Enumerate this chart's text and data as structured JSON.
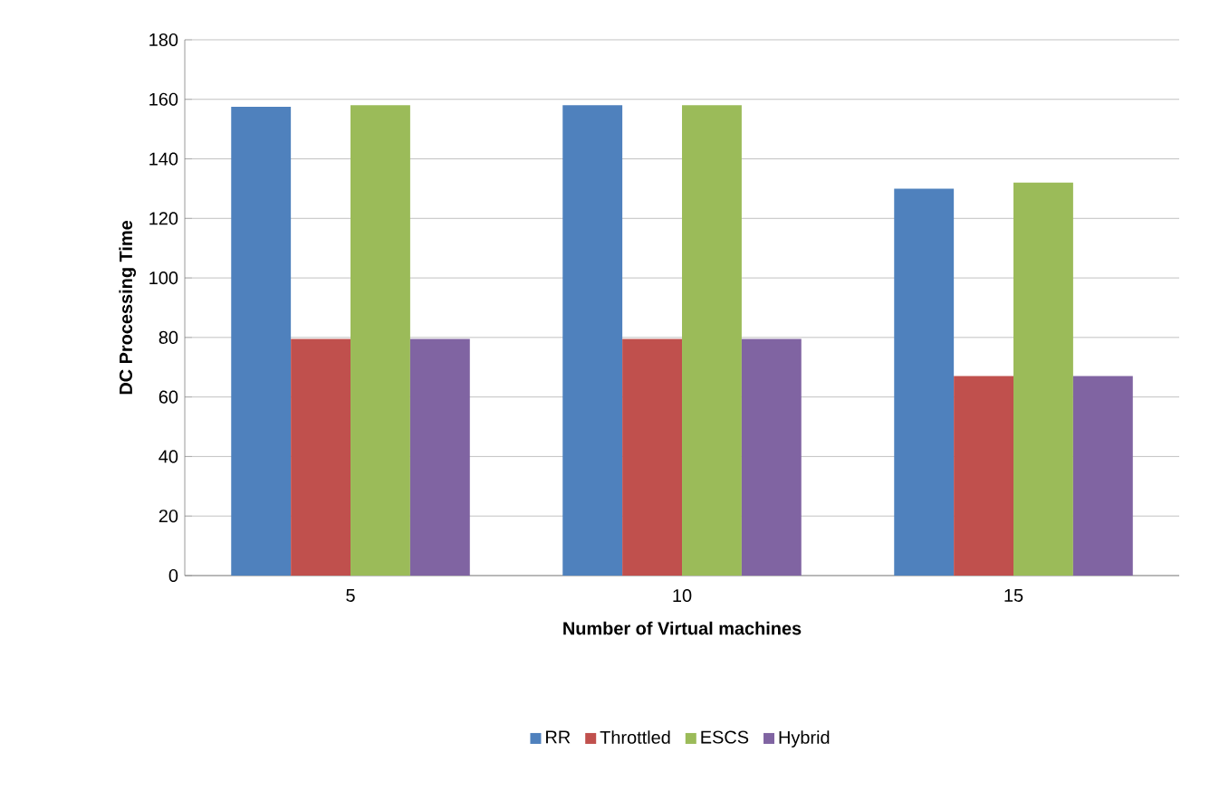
{
  "chart_data": {
    "type": "bar",
    "xlabel": "Number of Virtual machines",
    "ylabel": "DC Processing Time",
    "categories": [
      "5",
      "10",
      "15"
    ],
    "series": [
      {
        "name": "RR",
        "color": "#4f81bd",
        "values": [
          157.5,
          158,
          130
        ]
      },
      {
        "name": "Throttled",
        "color": "#c0504d",
        "values": [
          79.5,
          79.5,
          67
        ]
      },
      {
        "name": "ESCS",
        "color": "#9bbb59",
        "values": [
          158,
          158,
          132
        ]
      },
      {
        "name": "Hybrid",
        "color": "#8064a2",
        "values": [
          79.5,
          79.5,
          67
        ]
      }
    ],
    "ylim": [
      0,
      180
    ],
    "yticks": [
      0,
      20,
      40,
      60,
      80,
      100,
      120,
      140,
      160,
      180
    ],
    "grid": "y",
    "legend": "bottom"
  }
}
